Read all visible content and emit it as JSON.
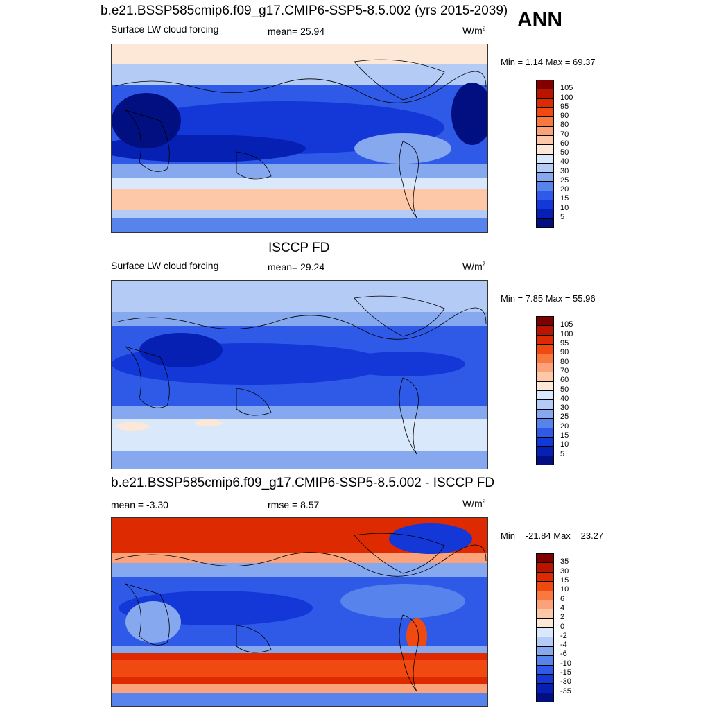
{
  "tag": "ANN",
  "panels": [
    {
      "title": "b.e21.BSSP585cmip6.f09_g17.CMIP6-SSP5-8.5.002 (yrs 2015-2039)",
      "left": "Surface LW cloud forcing",
      "center": "mean=  25.94",
      "units_base": "W/m",
      "units_exp": "2",
      "minmax": "Min =   1.14 Max =  69.37",
      "colorbar": {
        "colors": [
          "#800000",
          "#b81400",
          "#dd2a00",
          "#f04a10",
          "#f87840",
          "#fba27a",
          "#fcc8a8",
          "#fde7d6",
          "#d9e8fb",
          "#b3cbf5",
          "#85a8ef",
          "#5783ec",
          "#2f5ae8",
          "#1438d8",
          "#0620b4",
          "#020f80"
        ],
        "labels": [
          "105",
          "100",
          "95",
          "90",
          "80",
          "70",
          "60",
          "50",
          "40",
          "30",
          "25",
          "20",
          "15",
          "10",
          "5"
        ]
      }
    },
    {
      "title": "ISCCP FD",
      "left": "Surface LW cloud forcing",
      "center": "mean=  29.24",
      "units_base": "W/m",
      "units_exp": "2",
      "minmax": "Min =   7.85 Max =  55.96",
      "colorbar": {
        "colors": [
          "#800000",
          "#b81400",
          "#dd2a00",
          "#f04a10",
          "#f87840",
          "#fba27a",
          "#fcc8a8",
          "#fde7d6",
          "#d9e8fb",
          "#b3cbf5",
          "#85a8ef",
          "#5783ec",
          "#2f5ae8",
          "#1438d8",
          "#0620b4",
          "#020f80"
        ],
        "labels": [
          "105",
          "100",
          "95",
          "90",
          "80",
          "70",
          "60",
          "50",
          "40",
          "30",
          "25",
          "20",
          "15",
          "10",
          "5"
        ]
      }
    },
    {
      "title": "b.e21.BSSP585cmip6.f09_g17.CMIP6-SSP5-8.5.002 - ISCCP FD",
      "left": "mean =  -3.30",
      "center": "rmse =   8.57",
      "units_base": "W/m",
      "units_exp": "2",
      "minmax": "Min = -21.84 Max =  23.27",
      "colorbar": {
        "colors": [
          "#800000",
          "#b81400",
          "#dd2a00",
          "#f04a10",
          "#f87840",
          "#fba27a",
          "#fcc8a8",
          "#fde7d6",
          "#d9e8fb",
          "#b3cbf5",
          "#85a8ef",
          "#5783ec",
          "#2f5ae8",
          "#1438d8",
          "#0620b4",
          "#020f80"
        ],
        "labels": [
          "35",
          "30",
          "15",
          "10",
          "6",
          "4",
          "2",
          "0",
          "-2",
          "-4",
          "-6",
          "-10",
          "-15",
          "-30",
          "-35"
        ]
      }
    }
  ],
  "colors": {
    "deep_blue": "#0620b4",
    "mid_blue": "#2f5ae8",
    "light_blue": "#85a8ef",
    "pale_blue": "#d9e8fb",
    "pale_peach": "#fde7d6",
    "peach": "#fcc8a8",
    "red": "#dd2a00",
    "orange": "#f04a10"
  }
}
